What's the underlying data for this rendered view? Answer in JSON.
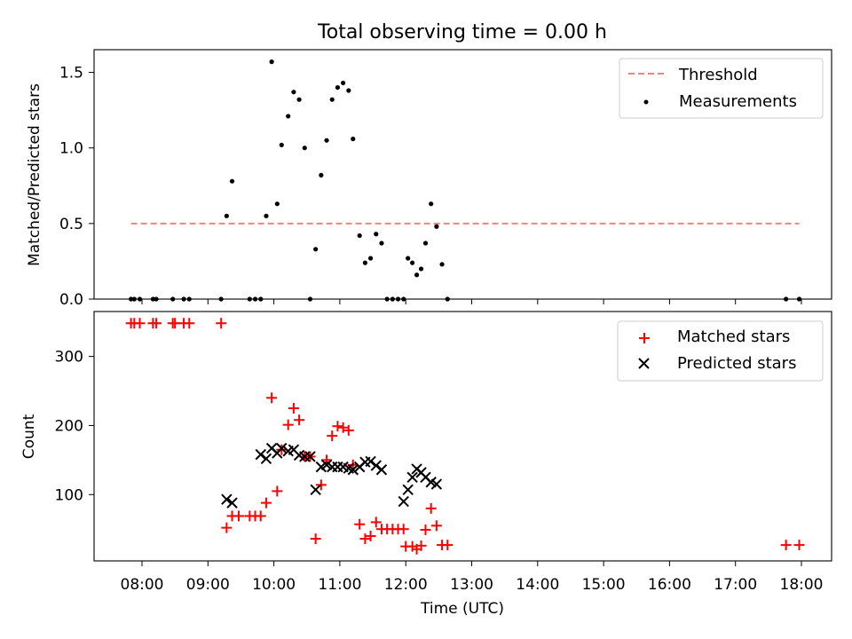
{
  "chart_data": [
    {
      "type": "scatter",
      "title": "Total observing time = 0.00 h",
      "xlabel": "",
      "ylabel": "Matched/Predicted stars",
      "ylim": [
        0,
        1.65
      ],
      "yticks": [
        "0.0",
        "0.5",
        "1.0",
        "1.5"
      ],
      "legend_position": "top-right",
      "series": [
        {
          "name": "Threshold",
          "kind": "dashed-line",
          "color": "#ff7f7f",
          "points": [
            [
              "07:50",
              0.5
            ],
            [
              "17:58",
              0.5
            ]
          ]
        },
        {
          "name": "Measurements",
          "kind": "dots",
          "color": "#000000",
          "points": [
            [
              "07:50",
              0.0
            ],
            [
              "07:53",
              0.0
            ],
            [
              "07:58",
              0.0
            ],
            [
              "08:10",
              0.0
            ],
            [
              "08:13",
              0.0
            ],
            [
              "08:28",
              0.0
            ],
            [
              "08:38",
              0.0
            ],
            [
              "08:43",
              0.0
            ],
            [
              "09:12",
              0.0
            ],
            [
              "09:17",
              0.55
            ],
            [
              "09:22",
              0.78
            ],
            [
              "09:38",
              0.0
            ],
            [
              "09:43",
              0.0
            ],
            [
              "09:48",
              0.0
            ],
            [
              "09:53",
              0.55
            ],
            [
              "09:58",
              1.57
            ],
            [
              "10:03",
              0.63
            ],
            [
              "10:07",
              1.02
            ],
            [
              "10:13",
              1.21
            ],
            [
              "10:18",
              1.37
            ],
            [
              "10:23",
              1.32
            ],
            [
              "10:28",
              1.0
            ],
            [
              "10:33",
              0.0
            ],
            [
              "10:38",
              0.33
            ],
            [
              "10:43",
              0.82
            ],
            [
              "10:48",
              1.05
            ],
            [
              "10:53",
              1.32
            ],
            [
              "10:58",
              1.4
            ],
            [
              "11:03",
              1.43
            ],
            [
              "11:08",
              1.38
            ],
            [
              "11:12",
              1.06
            ],
            [
              "11:18",
              0.42
            ],
            [
              "11:23",
              0.24
            ],
            [
              "11:28",
              0.27
            ],
            [
              "11:33",
              0.43
            ],
            [
              "11:38",
              0.37
            ],
            [
              "11:43",
              0.0
            ],
            [
              "11:48",
              0.0
            ],
            [
              "11:53",
              0.0
            ],
            [
              "11:58",
              0.0
            ],
            [
              "12:02",
              0.27
            ],
            [
              "12:06",
              0.24
            ],
            [
              "12:10",
              0.16
            ],
            [
              "12:14",
              0.2
            ],
            [
              "12:18",
              0.37
            ],
            [
              "12:23",
              0.63
            ],
            [
              "12:28",
              0.48
            ],
            [
              "12:33",
              0.23
            ],
            [
              "12:38",
              0.0
            ],
            [
              "17:46",
              0.0
            ],
            [
              "17:58",
              0.0
            ]
          ]
        }
      ]
    },
    {
      "type": "scatter",
      "title": "",
      "xlabel": "Time (UTC)",
      "ylabel": "Count",
      "ylim": [
        4,
        365
      ],
      "yticks": [
        "100",
        "200",
        "300"
      ],
      "xticks": [
        "08:00",
        "09:00",
        "10:00",
        "11:00",
        "12:00",
        "13:00",
        "14:00",
        "15:00",
        "16:00",
        "17:00",
        "18:00"
      ],
      "legend_position": "top-right",
      "series": [
        {
          "name": "Matched stars",
          "kind": "plus",
          "color": "#ff0000",
          "points": [
            [
              "07:50",
              348
            ],
            [
              "07:53",
              348
            ],
            [
              "07:58",
              348
            ],
            [
              "08:10",
              348
            ],
            [
              "08:13",
              348
            ],
            [
              "08:28",
              348
            ],
            [
              "08:30",
              348
            ],
            [
              "08:38",
              348
            ],
            [
              "08:43",
              348
            ],
            [
              "09:12",
              348
            ],
            [
              "09:17",
              52
            ],
            [
              "09:22",
              69
            ],
            [
              "09:28",
              69
            ],
            [
              "09:38",
              69
            ],
            [
              "09:43",
              69
            ],
            [
              "09:48",
              69
            ],
            [
              "09:53",
              88
            ],
            [
              "09:58",
              240
            ],
            [
              "10:03",
              105
            ],
            [
              "10:07",
              165
            ],
            [
              "10:13",
              201
            ],
            [
              "10:18",
              225
            ],
            [
              "10:23",
              208
            ],
            [
              "10:28",
              155
            ],
            [
              "10:33",
              155
            ],
            [
              "10:38",
              36
            ],
            [
              "10:43",
              114
            ],
            [
              "10:48",
              150
            ],
            [
              "10:53",
              185
            ],
            [
              "10:58",
              199
            ],
            [
              "11:03",
              197
            ],
            [
              "11:08",
              193
            ],
            [
              "11:12",
              143
            ],
            [
              "11:18",
              57
            ],
            [
              "11:23",
              36
            ],
            [
              "11:28",
              40
            ],
            [
              "11:33",
              60
            ],
            [
              "11:38",
              50
            ],
            [
              "11:43",
              50
            ],
            [
              "11:48",
              50
            ],
            [
              "11:53",
              50
            ],
            [
              "11:58",
              50
            ],
            [
              "12:00",
              25
            ],
            [
              "12:06",
              25
            ],
            [
              "12:10",
              21
            ],
            [
              "12:14",
              26
            ],
            [
              "12:18",
              49
            ],
            [
              "12:23",
              80
            ],
            [
              "12:28",
              55
            ],
            [
              "12:33",
              27
            ],
            [
              "12:38",
              27
            ],
            [
              "17:46",
              27
            ],
            [
              "17:58",
              27
            ]
          ]
        },
        {
          "name": "Predicted stars",
          "kind": "x",
          "color": "#000000",
          "points": [
            [
              "09:17",
              93
            ],
            [
              "09:22",
              88
            ],
            [
              "09:48",
              158
            ],
            [
              "09:53",
              152
            ],
            [
              "09:58",
              167
            ],
            [
              "10:03",
              160
            ],
            [
              "10:07",
              167
            ],
            [
              "10:13",
              163
            ],
            [
              "10:18",
              165
            ],
            [
              "10:23",
              157
            ],
            [
              "10:28",
              155
            ],
            [
              "10:33",
              155
            ],
            [
              "10:38",
              107
            ],
            [
              "10:43",
              140
            ],
            [
              "10:48",
              143
            ],
            [
              "10:53",
              140
            ],
            [
              "10:58",
              140
            ],
            [
              "11:03",
              140
            ],
            [
              "11:08",
              138
            ],
            [
              "11:12",
              136
            ],
            [
              "11:18",
              140
            ],
            [
              "11:23",
              147
            ],
            [
              "11:28",
              148
            ],
            [
              "11:33",
              142
            ],
            [
              "11:38",
              136
            ],
            [
              "11:58",
              90
            ],
            [
              "12:02",
              107
            ],
            [
              "12:06",
              125
            ],
            [
              "12:10",
              137
            ],
            [
              "12:14",
              132
            ],
            [
              "12:18",
              125
            ],
            [
              "12:23",
              118
            ],
            [
              "12:28",
              115
            ]
          ]
        }
      ]
    }
  ]
}
